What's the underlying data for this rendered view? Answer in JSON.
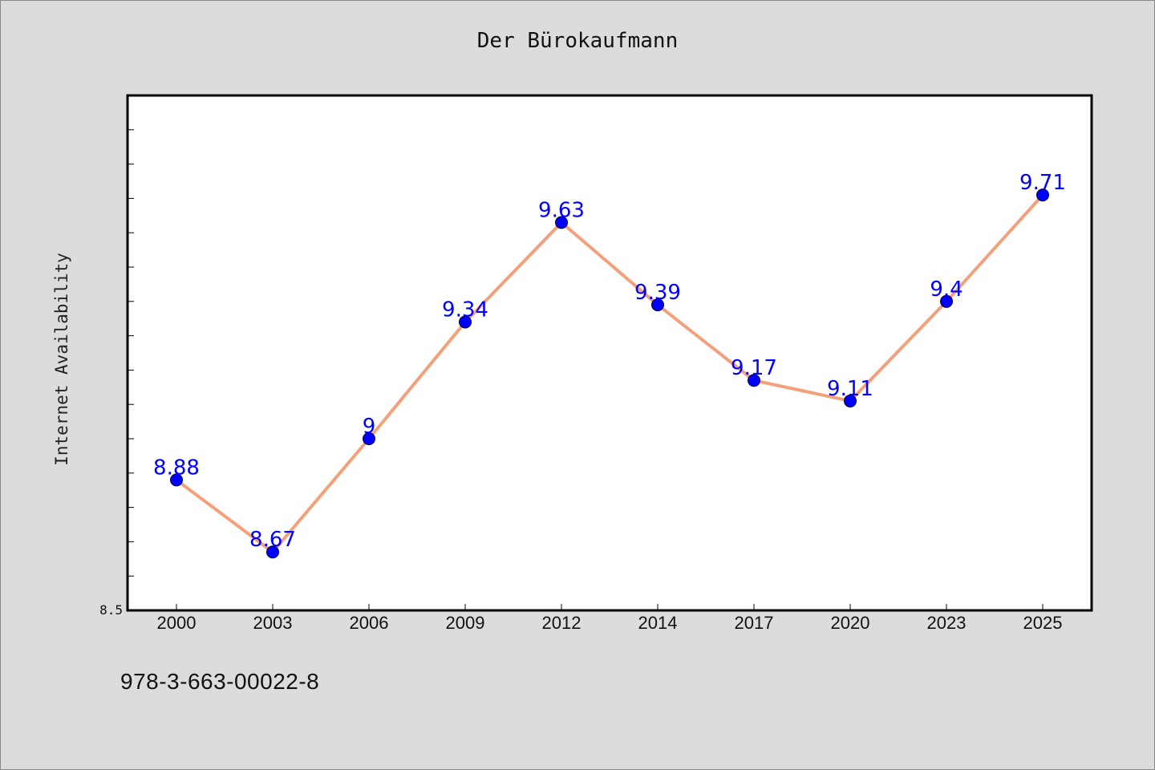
{
  "chart_data": {
    "type": "line",
    "title": "Der Bürokaufmann",
    "xlabel": "",
    "ylabel": "Internet Availability",
    "x": [
      "2000",
      "2003",
      "2006",
      "2009",
      "2012",
      "2014",
      "2017",
      "2020",
      "2023",
      "2025"
    ],
    "series": [
      {
        "values": [
          8.88,
          8.67,
          9,
          9.34,
          9.63,
          9.39,
          9.17,
          9.11,
          9.4,
          9.71
        ],
        "data_labels": [
          "8.88",
          "8.67",
          "9",
          "9.34",
          "9.63",
          "9.39",
          "9.17",
          "9.11",
          "9.4",
          "9.71"
        ]
      }
    ],
    "ylim": [
      8.5,
      10.0
    ],
    "y_tick_labels": [
      "8.5"
    ],
    "grid": false,
    "legend": "none",
    "colors": {
      "line": "#f4a07a",
      "marker": "#0000ff",
      "data_label": "#0000ff",
      "plot_background": "#ffffff",
      "figure_background": "#dcdcdc"
    }
  },
  "footer": {
    "isbn": "978-3-663-00022-8"
  }
}
